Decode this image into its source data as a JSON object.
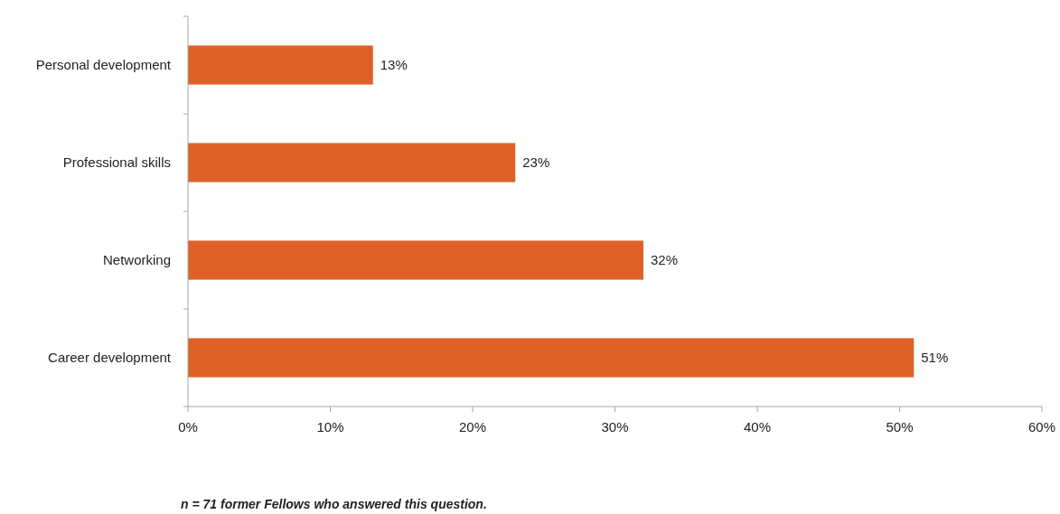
{
  "chart_data": {
    "type": "bar",
    "orientation": "horizontal",
    "categories": [
      "Personal development",
      "Professional skills",
      "Networking",
      "Career development"
    ],
    "values": [
      13,
      23,
      32,
      51
    ],
    "value_labels": [
      "13%",
      "23%",
      "32%",
      "51%"
    ],
    "color": "#e06128",
    "xlim": [
      0,
      60
    ],
    "xticks": [
      {
        "value": 0,
        "label": "0%"
      },
      {
        "value": 10,
        "label": "10%"
      },
      {
        "value": 20,
        "label": "20%"
      },
      {
        "value": 30,
        "label": "30%"
      },
      {
        "value": 40,
        "label": "40%"
      },
      {
        "value": 50,
        "label": "50%"
      },
      {
        "value": 60,
        "label": "60%"
      }
    ],
    "grid": false,
    "annotations": [
      "n = 71 former Fellows who answered this question."
    ]
  }
}
